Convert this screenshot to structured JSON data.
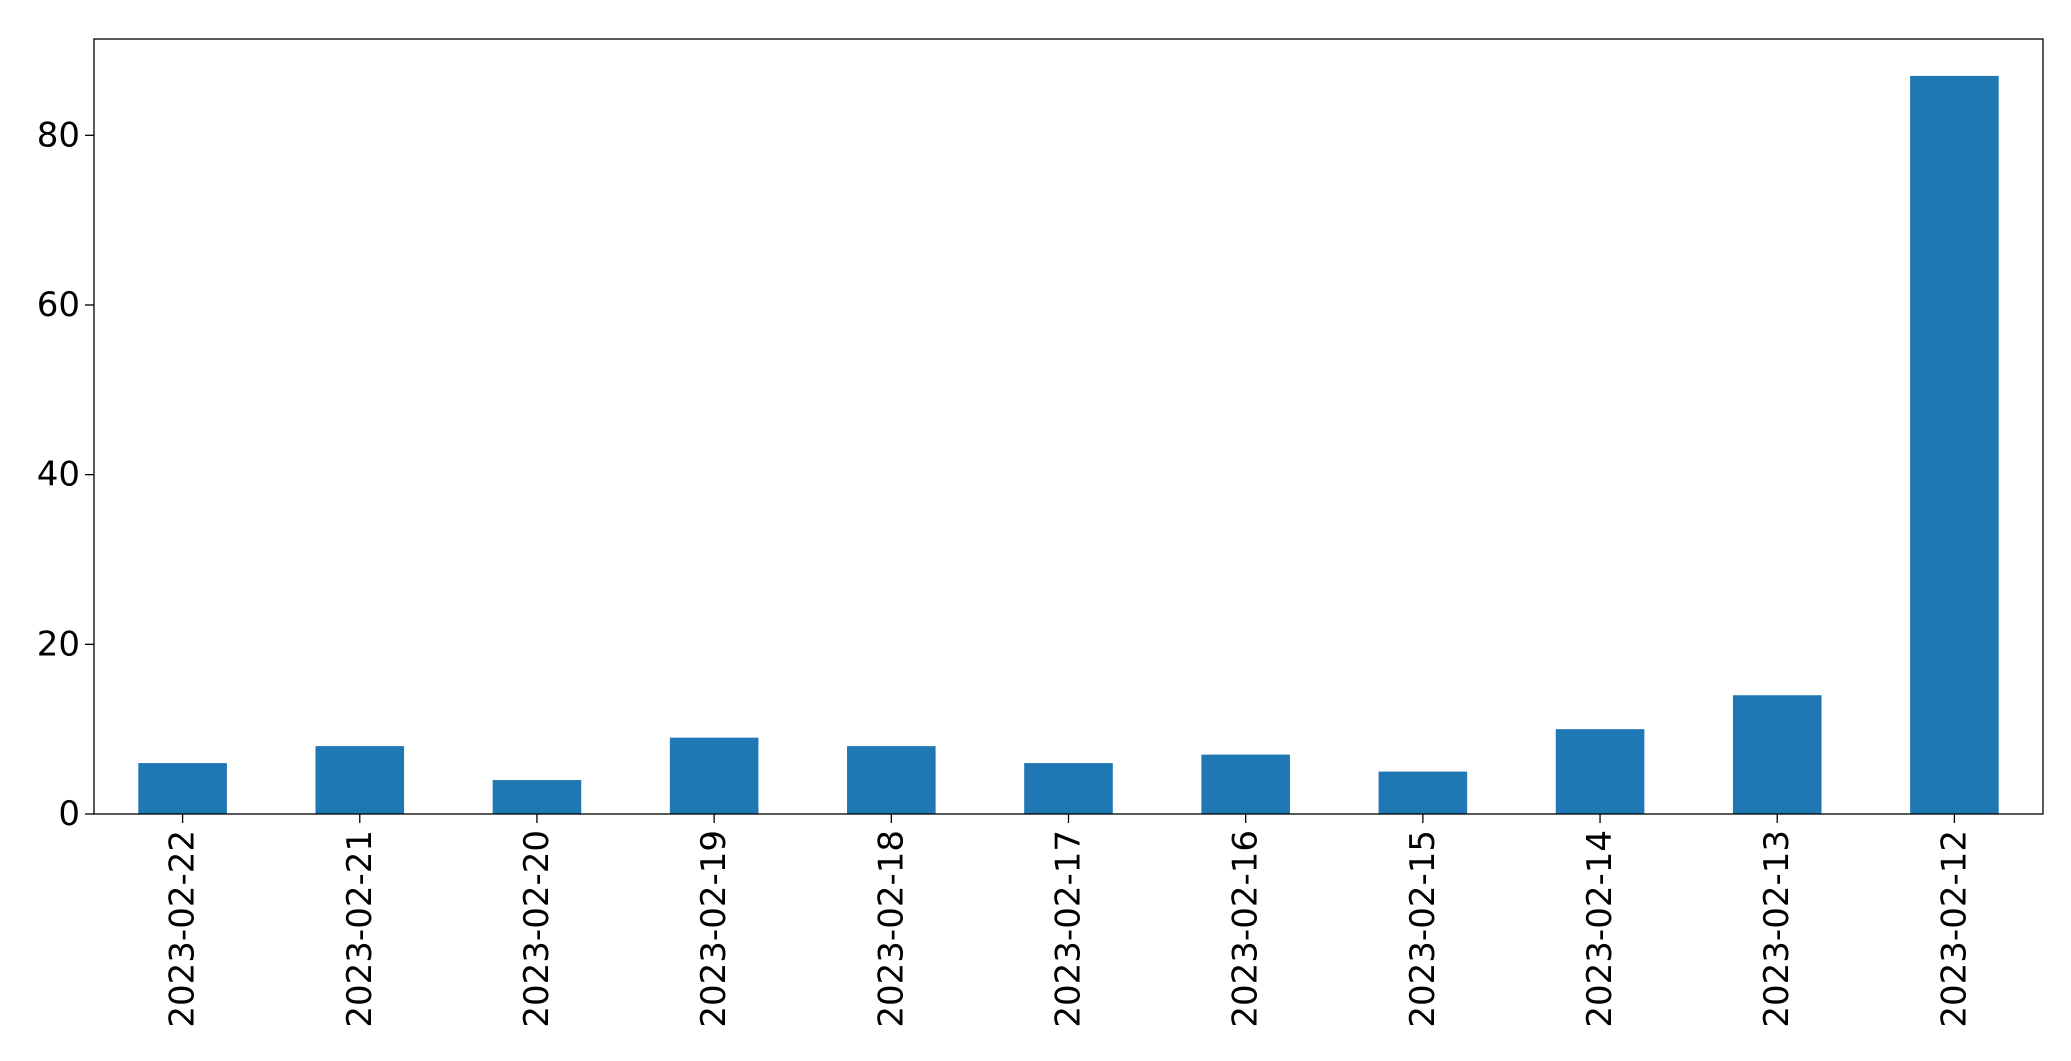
{
  "chart_data": {
    "type": "bar",
    "title": "",
    "xlabel": "",
    "ylabel": "",
    "categories": [
      "2023-02-22",
      "2023-02-21",
      "2023-02-20",
      "2023-02-19",
      "2023-02-18",
      "2023-02-17",
      "2023-02-16",
      "2023-02-15",
      "2023-02-14",
      "2023-02-13",
      "2023-02-12"
    ],
    "values": [
      6,
      8,
      4,
      9,
      8,
      6,
      7,
      5,
      10,
      14,
      87
    ],
    "ylim": [
      0,
      91.35
    ],
    "yticks": [
      0,
      20,
      40,
      60,
      80
    ],
    "grid": false,
    "legend": "none",
    "colors": {
      "bar": "#1f77b4",
      "axes": "#000000",
      "background": "#ffffff"
    }
  }
}
